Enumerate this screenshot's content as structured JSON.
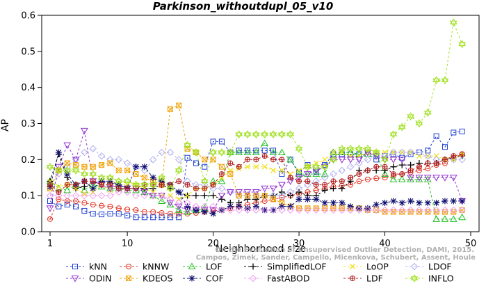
{
  "chart_data": {
    "type": "line",
    "title": "Parkinson_withoutdupl_05_v10",
    "xlabel": "Neighborhood size",
    "ylabel": "AP",
    "xlim": [
      1,
      50
    ],
    "ylim": [
      0,
      0.6
    ],
    "xticks": [
      1,
      10,
      20,
      30,
      40,
      50
    ],
    "yticks": [
      0.0,
      0.1,
      0.2,
      0.3,
      0.4,
      0.5,
      0.6
    ],
    "grid": false,
    "legend_position": "bottom",
    "watermark": [
      "Campos, Zimek, Sander, Campello, Micenkova, Schubert, Assent, Houle",
      "On the Evaluation of Unsupervised Outlier Detection, DAMI, 2015."
    ],
    "x": [
      1,
      2,
      3,
      4,
      5,
      6,
      7,
      8,
      9,
      10,
      11,
      12,
      13,
      14,
      15,
      16,
      17,
      18,
      19,
      20,
      21,
      22,
      23,
      24,
      25,
      26,
      27,
      28,
      29,
      30,
      31,
      32,
      33,
      34,
      35,
      36,
      37,
      38,
      39,
      40,
      41,
      42,
      43,
      44,
      45,
      46,
      47,
      48,
      49
    ],
    "series": [
      {
        "name": "kNN",
        "color": "#1f3fd0",
        "marker": "square",
        "values": [
          0.085,
          0.07,
          0.075,
          0.07,
          0.058,
          0.05,
          0.048,
          0.05,
          0.05,
          0.045,
          0.04,
          0.04,
          0.04,
          0.04,
          0.04,
          0.04,
          0.205,
          0.19,
          0.18,
          0.25,
          0.25,
          0.22,
          0.225,
          0.225,
          0.225,
          0.225,
          0.225,
          0.16,
          0.2,
          0.165,
          0.185,
          0.165,
          0.185,
          0.215,
          0.215,
          0.215,
          0.215,
          0.215,
          0.2,
          0.21,
          0.215,
          0.205,
          0.215,
          0.22,
          0.225,
          0.265,
          0.235,
          0.275,
          0.278
        ]
      },
      {
        "name": "kNNW",
        "color": "#e03020",
        "marker": "circle",
        "values": [
          0.035,
          0.09,
          0.085,
          0.085,
          0.08,
          0.075,
          0.072,
          0.07,
          0.065,
          0.062,
          0.06,
          0.055,
          0.055,
          0.052,
          0.05,
          0.05,
          0.05,
          0.052,
          0.055,
          0.058,
          0.06,
          0.065,
          0.07,
          0.075,
          0.08,
          0.085,
          0.09,
          0.095,
          0.1,
          0.105,
          0.11,
          0.115,
          0.12,
          0.125,
          0.128,
          0.13,
          0.14,
          0.145,
          0.148,
          0.15,
          0.155,
          0.16,
          0.165,
          0.17,
          0.175,
          0.185,
          0.19,
          0.205,
          0.215
        ]
      },
      {
        "name": "LOF",
        "color": "#20c020",
        "marker": "triangle-up",
        "values": [
          0.14,
          0.12,
          0.115,
          0.13,
          0.115,
          0.13,
          0.125,
          0.12,
          0.12,
          0.115,
          0.115,
          0.11,
          0.1,
          0.085,
          0.075,
          0.06,
          0.055,
          0.06,
          0.065,
          0.14,
          0.14,
          0.22,
          0.22,
          0.22,
          0.22,
          0.245,
          0.22,
          0.22,
          0.2,
          0.16,
          0.16,
          0.16,
          0.16,
          0.22,
          0.22,
          0.22,
          0.215,
          0.215,
          0.215,
          0.16,
          0.145,
          0.145,
          0.145,
          0.145,
          0.145,
          0.035,
          0.035,
          0.035,
          0.04
        ]
      },
      {
        "name": "SimplifiedLOF",
        "color": "#000000",
        "marker": "plus",
        "values": [
          0.14,
          0.215,
          0.15,
          0.12,
          0.125,
          0.135,
          0.14,
          0.135,
          0.13,
          0.12,
          0.12,
          0.12,
          0.12,
          0.13,
          0.12,
          0.11,
          0.1,
          0.1,
          0.1,
          0.1,
          0.09,
          0.08,
          0.08,
          0.09,
          0.09,
          0.1,
          0.1,
          0.11,
          0.1,
          0.11,
          0.1,
          0.1,
          0.115,
          0.12,
          0.12,
          0.14,
          0.17,
          0.17,
          0.17,
          0.17,
          0.18,
          0.185,
          0.185,
          0.19,
          0.19,
          0.19,
          0.2,
          0.205,
          0.21
        ]
      },
      {
        "name": "LoOP",
        "color": "#f0e020",
        "marker": "x",
        "values": [
          0.14,
          0.125,
          0.13,
          0.12,
          0.105,
          0.11,
          0.13,
          0.115,
          0.13,
          0.13,
          0.13,
          0.12,
          0.11,
          0.1,
          0.1,
          0.09,
          0.1,
          0.12,
          0.12,
          0.13,
          0.15,
          0.17,
          0.175,
          0.18,
          0.18,
          0.18,
          0.17,
          0.17,
          0.16,
          0.17,
          0.18,
          0.19,
          0.2,
          0.22,
          0.22,
          0.21,
          0.21,
          0.22,
          0.22,
          0.22,
          0.22,
          0.22,
          0.22,
          0.21,
          0.21,
          0.21,
          0.2,
          0.2,
          0.215
        ]
      },
      {
        "name": "LDOF",
        "color": "#b0b0f0",
        "marker": "diamond",
        "values": [
          0.1,
          0.16,
          0.18,
          0.2,
          0.22,
          0.23,
          0.21,
          0.2,
          0.2,
          0.19,
          0.18,
          0.17,
          0.2,
          0.22,
          0.22,
          0.2,
          0.14,
          0.13,
          0.13,
          0.12,
          0.12,
          0.11,
          0.1,
          0.1,
          0.1,
          0.1,
          0.1,
          0.1,
          0.11,
          0.12,
          0.13,
          0.14,
          0.15,
          0.16,
          0.17,
          0.18,
          0.19,
          0.2,
          0.21,
          0.21,
          0.22,
          0.22,
          0.22,
          0.22,
          0.21,
          0.2,
          0.2,
          0.2,
          0.2
        ]
      },
      {
        "name": "ODIN",
        "color": "#9030d0",
        "marker": "triangle-down",
        "values": [
          0.065,
          0.18,
          0.24,
          0.2,
          0.28,
          0.14,
          0.13,
          0.12,
          0.12,
          0.12,
          0.12,
          0.11,
          0.1,
          0.1,
          0.08,
          0.07,
          0.06,
          0.06,
          0.06,
          0.06,
          0.1,
          0.11,
          0.11,
          0.11,
          0.11,
          0.12,
          0.12,
          0.13,
          0.14,
          0.15,
          0.16,
          0.17,
          0.18,
          0.2,
          0.2,
          0.2,
          0.2,
          0.22,
          0.21,
          0.2,
          0.2,
          0.2,
          0.15,
          0.15,
          0.15,
          0.15,
          0.15,
          0.15,
          0.085
        ]
      },
      {
        "name": "KDEOS",
        "color": "#f0a000",
        "marker": "square-x",
        "values": [
          0.12,
          0.17,
          0.19,
          0.185,
          0.18,
          0.18,
          0.185,
          0.19,
          0.17,
          0.17,
          0.16,
          0.15,
          0.14,
          0.13,
          0.34,
          0.35,
          0.23,
          0.22,
          0.2,
          0.2,
          0.18,
          0.16,
          0.1,
          0.1,
          0.1,
          0.1,
          0.09,
          0.08,
          0.07,
          0.065,
          0.065,
          0.065,
          0.065,
          0.065,
          0.065,
          0.065,
          0.065,
          0.06,
          0.06,
          0.055,
          0.055,
          0.055,
          0.055,
          0.055,
          0.055,
          0.055,
          0.055,
          0.055,
          0.06
        ]
      },
      {
        "name": "COF",
        "color": "#101070",
        "marker": "asterisk",
        "values": [
          0.125,
          0.22,
          0.16,
          0.13,
          0.14,
          0.12,
          0.14,
          0.14,
          0.13,
          0.12,
          0.18,
          0.18,
          0.15,
          0.14,
          0.13,
          0.11,
          0.07,
          0.06,
          0.055,
          0.05,
          0.06,
          0.07,
          0.07,
          0.065,
          0.07,
          0.06,
          0.06,
          0.07,
          0.07,
          0.09,
          0.09,
          0.09,
          0.08,
          0.08,
          0.08,
          0.07,
          0.065,
          0.065,
          0.075,
          0.08,
          0.085,
          0.08,
          0.085,
          0.08,
          0.08,
          0.08,
          0.085,
          0.085,
          0.085
        ]
      },
      {
        "name": "FastABOD",
        "color": "#f0a0f0",
        "marker": "diamond",
        "values": [
          0.1,
          0.1,
          0.1,
          0.1,
          0.1,
          0.1,
          0.1,
          0.1,
          0.11,
          0.11,
          0.1,
          0.1,
          0.1,
          0.1,
          0.09,
          0.08,
          0.08,
          0.07,
          0.07,
          0.07,
          0.06,
          0.06,
          0.06,
          0.06,
          0.06,
          0.06,
          0.06,
          0.06,
          0.06,
          0.06,
          0.06,
          0.06,
          0.06,
          0.06,
          0.06,
          0.06,
          0.06,
          0.06,
          0.06,
          0.06,
          0.06,
          0.06,
          0.06,
          0.06,
          0.06,
          0.06,
          0.06,
          0.06,
          0.06
        ]
      },
      {
        "name": "LDF",
        "color": "#b01818",
        "marker": "circle-plus",
        "values": [
          0.13,
          0.11,
          0.13,
          0.13,
          0.14,
          0.14,
          0.13,
          0.13,
          0.12,
          0.12,
          0.12,
          0.13,
          0.13,
          0.13,
          0.13,
          0.14,
          0.13,
          0.12,
          0.12,
          0.13,
          0.16,
          0.19,
          0.18,
          0.2,
          0.2,
          0.21,
          0.2,
          0.2,
          0.15,
          0.14,
          0.14,
          0.13,
          0.13,
          0.14,
          0.14,
          0.15,
          0.16,
          0.17,
          0.18,
          0.18,
          0.16,
          0.16,
          0.17,
          0.18,
          0.19,
          0.19,
          0.2,
          0.21,
          0.215
        ]
      },
      {
        "name": "INFLO",
        "color": "#a0e020",
        "marker": "hexagram",
        "values": [
          0.18,
          0.17,
          0.17,
          0.17,
          0.16,
          0.16,
          0.15,
          0.15,
          0.14,
          0.14,
          0.13,
          0.13,
          0.13,
          0.15,
          0.12,
          0.17,
          0.24,
          0.22,
          0.14,
          0.22,
          0.22,
          0.22,
          0.27,
          0.27,
          0.27,
          0.27,
          0.27,
          0.27,
          0.27,
          0.23,
          0.18,
          0.18,
          0.18,
          0.2,
          0.23,
          0.23,
          0.23,
          0.23,
          0.22,
          0.2,
          0.27,
          0.29,
          0.32,
          0.3,
          0.33,
          0.42,
          0.42,
          0.58,
          0.52
        ]
      }
    ]
  }
}
